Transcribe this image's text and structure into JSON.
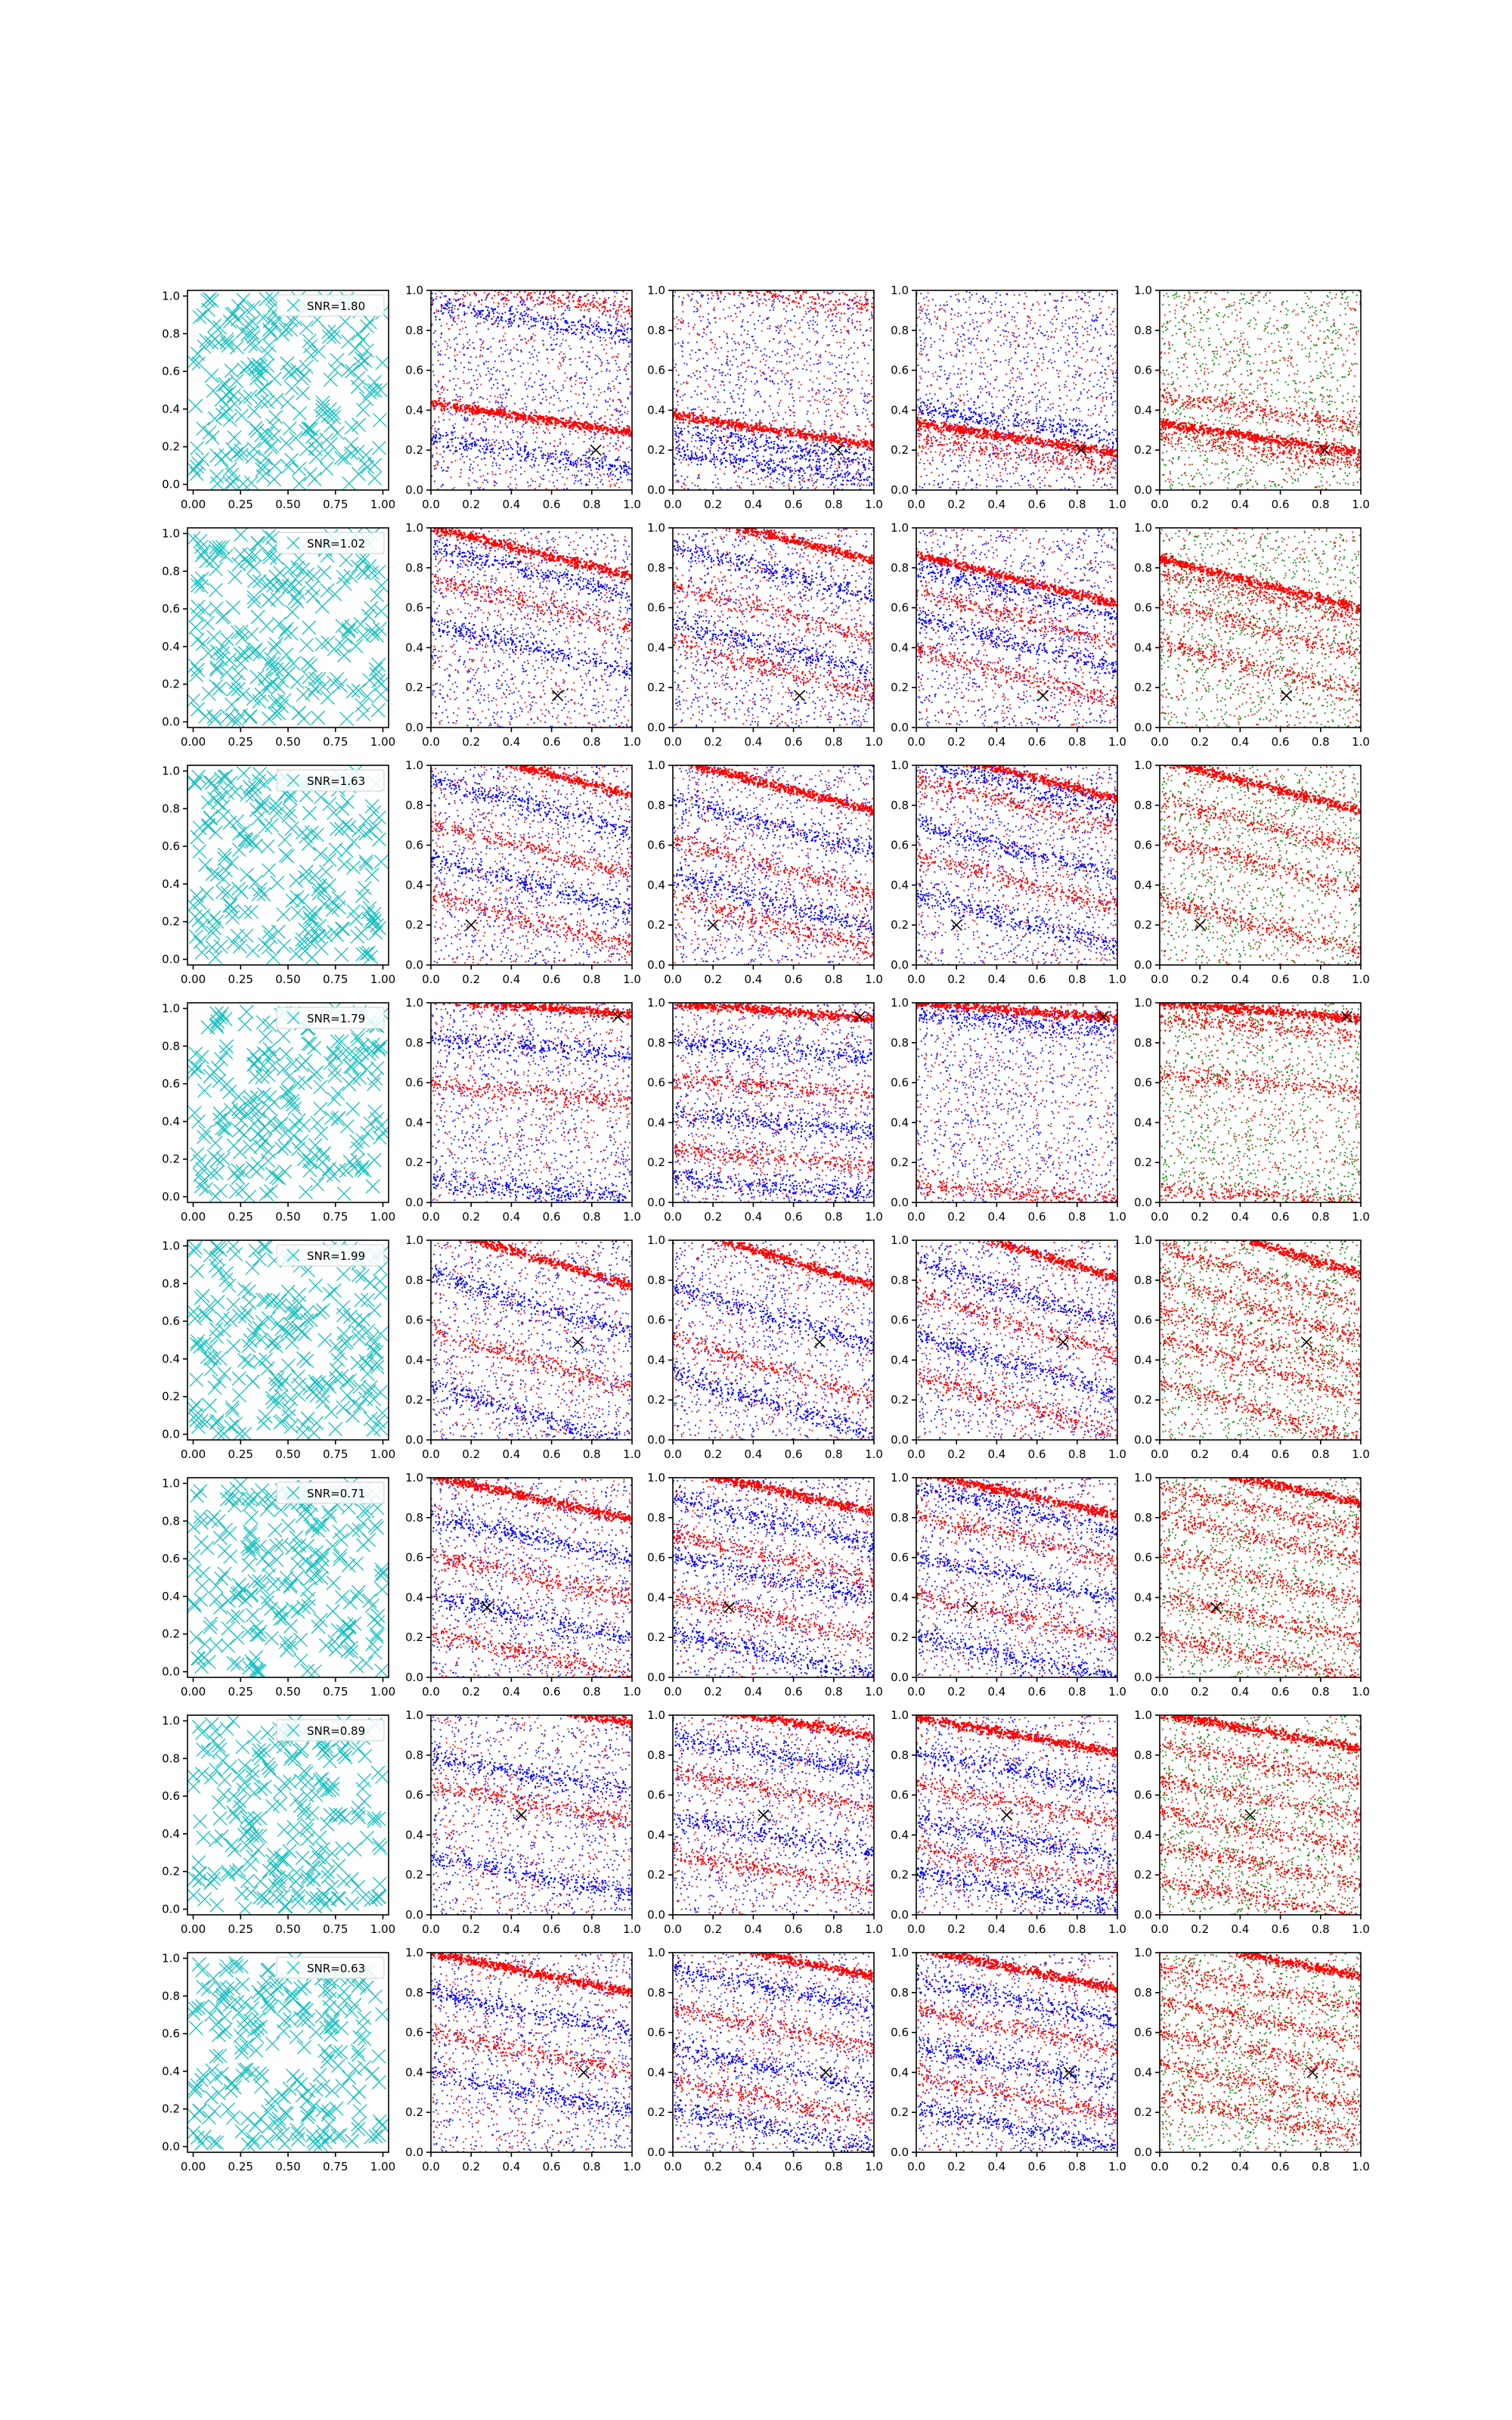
{
  "figure": {
    "rows": 8,
    "columns": 5,
    "colors": {
      "cyan": "#17bfbf",
      "red": "#ff0000",
      "blue": "#0000ff",
      "green": "#008000",
      "black": "#000000"
    }
  },
  "chart_data": [
    {
      "type": "scatter",
      "panel": "column-1",
      "marker": "x",
      "color": "#17bfbf",
      "xlim": [
        -0.03,
        1.03
      ],
      "ylim": [
        -0.03,
        1.03
      ],
      "xticks": [
        "0.00",
        "0.25",
        "0.50",
        "0.75",
        "1.00"
      ],
      "yticks": [
        "0.0",
        "0.2",
        "0.4",
        "0.6",
        "0.8",
        "1.0"
      ],
      "rows": [
        {
          "legend": "SNR=1.80"
        },
        {
          "legend": "SNR=1.02"
        },
        {
          "legend": "SNR=1.63"
        },
        {
          "legend": "SNR=1.79"
        },
        {
          "legend": "SNR=1.99"
        },
        {
          "legend": "SNR=0.71"
        },
        {
          "legend": "SNR=0.89"
        },
        {
          "legend": "SNR=0.63"
        }
      ]
    },
    {
      "type": "scatter",
      "panel": "columns-2-to-5",
      "marker": "dot",
      "xlim": [
        0,
        1
      ],
      "ylim": [
        0,
        1
      ],
      "xticks": [
        "0.0",
        "0.2",
        "0.4",
        "0.6",
        "0.8",
        "1.0"
      ],
      "yticks": [
        "0.0",
        "0.2",
        "0.4",
        "0.6",
        "0.8",
        "1.0"
      ],
      "column_colors": [
        [
          "#ff0000",
          "#0000ff"
        ],
        [
          "#ff0000",
          "#0000ff"
        ],
        [
          "#ff0000",
          "#0000ff"
        ],
        [
          "#ff0000",
          "#008000"
        ]
      ],
      "true_point_marker": "x",
      "rows": [
        {
          "true_point": [
            0.82,
            0.2
          ],
          "band_slope": -0.15,
          "col2_bands": [
            0.36,
            0.18,
            0.98,
            0.85
          ],
          "col3_bands": [
            0.3,
            0.22,
            0.98,
            0.12
          ],
          "col4_bands": [
            0.26,
            0.34,
            0.18
          ],
          "col5_bands": [
            0.26,
            0.4,
            0.2
          ]
        },
        {
          "true_point": [
            0.63,
            0.16
          ],
          "band_slope": -0.25,
          "col2_bands": [
            0.88,
            0.78,
            0.62,
            0.4
          ],
          "col3_bands": [
            0.96,
            0.78,
            0.58,
            0.4,
            0.3
          ],
          "col4_bands": [
            0.74,
            0.68,
            0.55,
            0.42,
            0.26
          ],
          "col5_bands": [
            0.72,
            0.66,
            0.5,
            0.3
          ]
        },
        {
          "true_point": [
            0.2,
            0.2
          ],
          "band_slope": -0.26,
          "col2_bands": [
            0.98,
            0.8,
            0.58,
            0.4,
            0.22
          ],
          "col3_bands": [
            0.9,
            0.7,
            0.49,
            0.32,
            0.21
          ],
          "col4_bands": [
            0.96,
            0.9,
            0.8,
            0.58,
            0.42,
            0.22
          ],
          "col5_bands": [
            0.9,
            0.7,
            0.5,
            0.2
          ]
        },
        {
          "true_point": [
            0.93,
            0.93
          ],
          "band_slope": -0.08,
          "col2_bands": [
            0.98,
            0.78,
            0.55,
            0.06
          ],
          "col3_bands": [
            0.96,
            0.76,
            0.58,
            0.4,
            0.22,
            0.08
          ],
          "col4_bands": [
            0.96,
            0.9,
            0.05
          ],
          "col5_bands": [
            0.96,
            0.88,
            0.6,
            0.03
          ]
        },
        {
          "true_point": [
            0.73,
            0.49
          ],
          "band_slope": -0.3,
          "col2_bands": [
            0.92,
            0.68,
            0.4,
            0.12
          ],
          "col3_bands": [
            0.92,
            0.62,
            0.36,
            0.18
          ],
          "col4_bands": [
            0.96,
            0.74,
            0.58,
            0.38,
            0.18
          ],
          "col5_bands": [
            0.98,
            0.82,
            0.66,
            0.5,
            0.36,
            0.14
          ]
        },
        {
          "true_point": [
            0.28,
            0.35
          ],
          "band_slope": -0.22,
          "col2_bands": [
            0.9,
            0.7,
            0.5,
            0.3,
            0.12
          ],
          "col3_bands": [
            0.94,
            0.78,
            0.6,
            0.5,
            0.3,
            0.12
          ],
          "col4_bands": [
            0.92,
            0.84,
            0.7,
            0.5,
            0.3,
            0.1
          ],
          "col5_bands": [
            0.98,
            0.84,
            0.7,
            0.5,
            0.3,
            0.1
          ]
        },
        {
          "true_point": [
            0.45,
            0.5
          ],
          "band_slope": -0.18,
          "col2_bands": [
            1.05,
            0.7,
            0.56,
            0.2
          ],
          "col3_bands": [
            0.98,
            0.8,
            0.62,
            0.4,
            0.22
          ],
          "col4_bands": [
            0.9,
            0.72,
            0.56,
            0.38,
            0.24,
            0.12
          ],
          "col5_bands": [
            0.92,
            0.76,
            0.58,
            0.42,
            0.25,
            0.08
          ]
        },
        {
          "true_point": [
            0.76,
            0.4
          ],
          "band_slope": -0.2,
          "col2_bands": [
            0.9,
            0.7,
            0.5,
            0.3
          ],
          "col3_bands": [
            0.98,
            0.82,
            0.62,
            0.42,
            0.26,
            0.12
          ],
          "col4_bands": [
            0.92,
            0.76,
            0.62,
            0.44,
            0.28,
            0.12
          ],
          "col5_bands": [
            0.98,
            0.82,
            0.66,
            0.5,
            0.34,
            0.18
          ]
        }
      ]
    }
  ]
}
